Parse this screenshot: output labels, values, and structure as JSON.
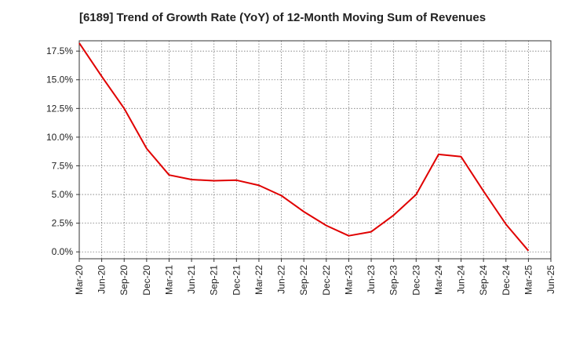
{
  "chart_data": {
    "type": "line",
    "title": "[6189]  Trend of Growth Rate (YoY) of 12-Month Moving Sum of Revenues",
    "xlabel": "",
    "ylabel": "",
    "x_ticks": [
      "Mar-20",
      "Jun-20",
      "Sep-20",
      "Dec-20",
      "Mar-21",
      "Jun-21",
      "Sep-21",
      "Dec-21",
      "Mar-22",
      "Jun-22",
      "Sep-22",
      "Dec-22",
      "Mar-23",
      "Jun-23",
      "Sep-23",
      "Dec-23",
      "Mar-24",
      "Jun-24",
      "Sep-24",
      "Dec-24",
      "Mar-25",
      "Jun-25"
    ],
    "y_ticks": [
      "0.0%",
      "2.5%",
      "5.0%",
      "7.5%",
      "10.0%",
      "12.5%",
      "15.0%",
      "17.5%"
    ],
    "y_tick_values": [
      0,
      2.5,
      5.0,
      7.5,
      10.0,
      12.5,
      15.0,
      17.5
    ],
    "ylim": [
      -0.6,
      18.4
    ],
    "grid": true,
    "line_color": "#e00000",
    "series": [
      {
        "x": [
          "Mar-20",
          "Jun-20",
          "Sep-20",
          "Dec-20",
          "Mar-21",
          "Jun-21",
          "Sep-21",
          "Dec-21",
          "Mar-22",
          "Jun-22",
          "Sep-22",
          "Dec-22",
          "Mar-23",
          "Jun-23",
          "Sep-23",
          "Dec-23",
          "Mar-24",
          "Jun-24",
          "Sep-24",
          "Dec-24",
          "Mar-25"
        ],
        "values": [
          18.2,
          15.3,
          12.5,
          9.0,
          6.7,
          6.3,
          6.2,
          6.25,
          5.8,
          4.9,
          3.5,
          2.3,
          1.4,
          1.75,
          3.2,
          5.0,
          8.5,
          8.3,
          5.3,
          2.4,
          0.1
        ]
      }
    ]
  }
}
